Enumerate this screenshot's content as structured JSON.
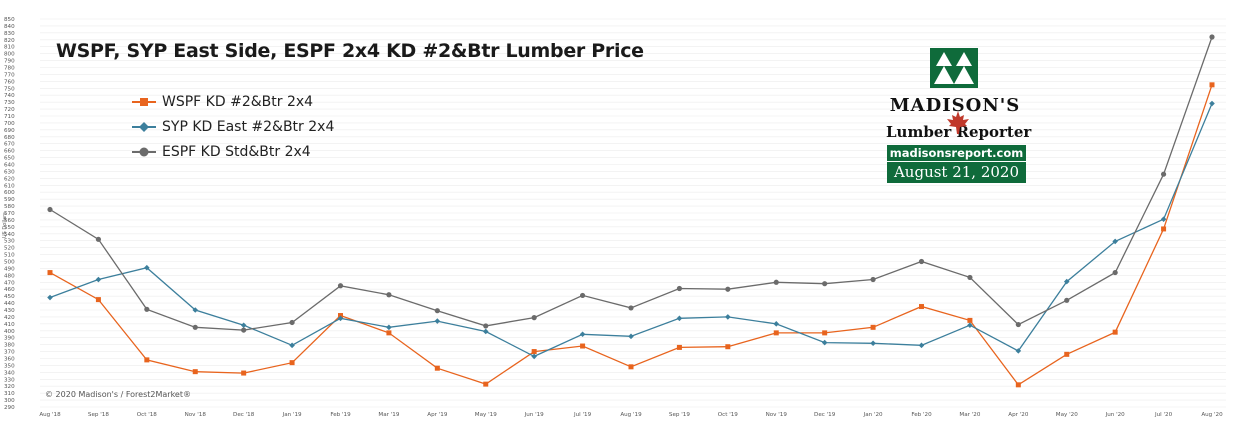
{
  "chart_data": {
    "type": "line",
    "title": "WSPF, SYP East Side, ESPF 2x4 KD #2&Btr Lumber Price",
    "ylabel": "US Dollars",
    "ylim": [
      290,
      850
    ],
    "ytick_step": 10,
    "grid": true,
    "legend_position": "top-left",
    "categories": [
      "Aug '18",
      "Sep '18",
      "Oct '18",
      "Nov '18",
      "Dec '18",
      "Jan '19",
      "Feb '19",
      "Mar '19",
      "Apr '19",
      "May '19",
      "Jun '19",
      "Jul '19",
      "Aug '19",
      "Sep '19",
      "Oct '19",
      "Nov '19",
      "Dec '19",
      "Jan '20",
      "Feb '20",
      "Mar '20",
      "Apr '20",
      "May '20",
      "Jun '20",
      "Jul '20",
      "Aug '20"
    ],
    "series": [
      {
        "name": "WSPF KD #2&Btr 2x4",
        "color": "#e8641e",
        "marker": "square",
        "values": [
          484,
          445,
          358,
          341,
          339,
          354,
          422,
          397,
          346,
          323,
          370,
          378,
          348,
          376,
          377,
          397,
          397,
          405,
          435,
          415,
          322,
          366,
          398,
          547,
          755
        ]
      },
      {
        "name": "SYP KD East #2&Btr 2x4",
        "color": "#3c7f9c",
        "marker": "diamond",
        "values": [
          448,
          474,
          491,
          430,
          408,
          379,
          418,
          405,
          414,
          399,
          363,
          395,
          392,
          418,
          420,
          410,
          383,
          382,
          379,
          408,
          371,
          471,
          529,
          561,
          728
        ]
      },
      {
        "name": "ESPF KD Std&Btr 2x4",
        "color": "#6b6b6b",
        "marker": "circle",
        "values": [
          575,
          532,
          431,
          405,
          401,
          412,
          465,
          452,
          429,
          407,
          419,
          451,
          433,
          461,
          460,
          470,
          468,
          474,
          500,
          477,
          409,
          444,
          484,
          626,
          824
        ]
      }
    ]
  },
  "copyright": "© 2020 Madison's / Forest2Market®",
  "logo": {
    "name": "MADISON'S",
    "subtitle": "Lumber Reporter",
    "url": "madisonsreport.com",
    "date": "August 21, 2020",
    "brand_color": "#0f6b3b",
    "leaf_color": "#c0392b"
  }
}
